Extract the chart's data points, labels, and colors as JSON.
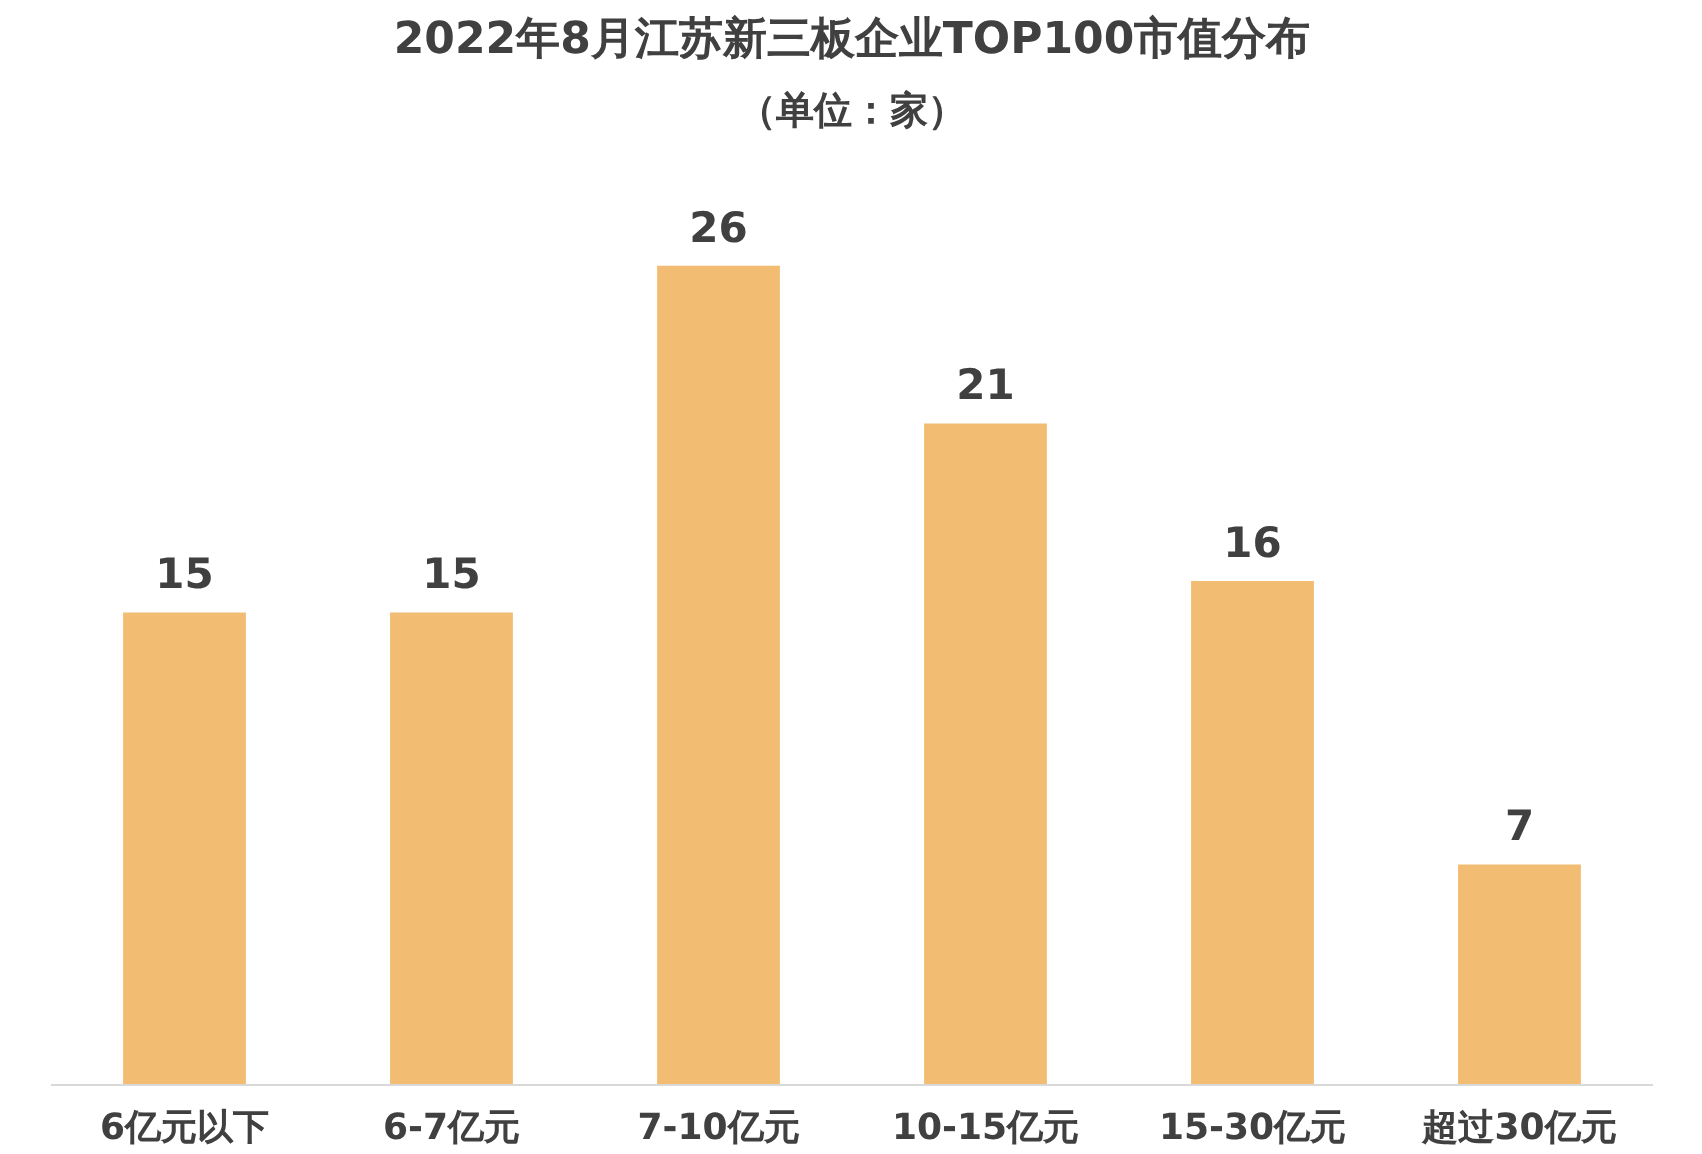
{
  "chart_data": {
    "type": "bar",
    "title": "2022年8月江苏新三板企业TOP100市值分布",
    "subtitle": "（单位：家）",
    "categories": [
      "6亿元以下",
      "6-7亿元",
      "7-10亿元",
      "10-15亿元",
      "15-30亿元",
      "超过30亿元"
    ],
    "values": [
      15,
      15,
      26,
      21,
      16,
      7
    ],
    "color": "#f2bd72",
    "data_labels": true
  }
}
